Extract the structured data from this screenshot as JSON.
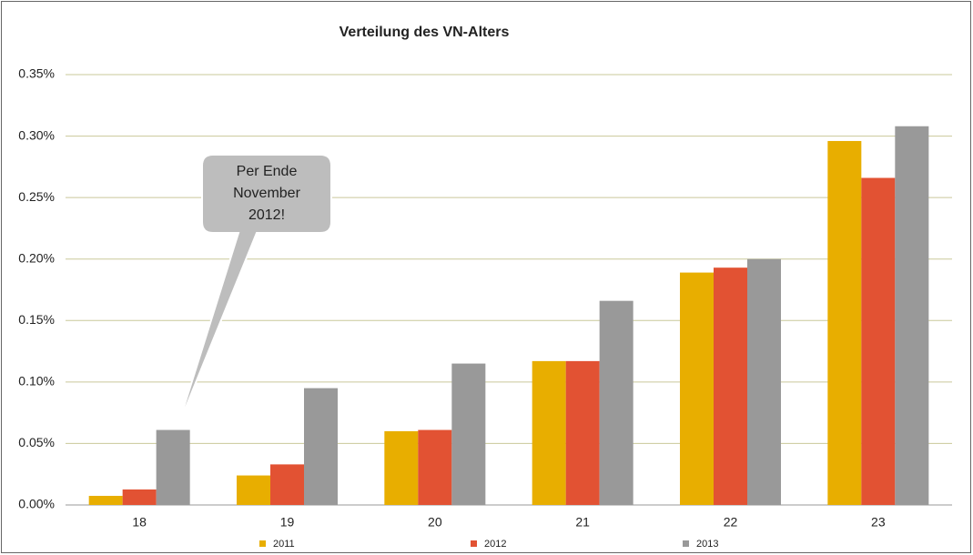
{
  "chart_data": {
    "type": "bar",
    "title": "Verteilung des VN-Alters",
    "categories": [
      "18",
      "19",
      "20",
      "21",
      "22",
      "23"
    ],
    "series": [
      {
        "name": "2011",
        "color": "#e8ae00",
        "values": [
          0.0074,
          0.024,
          0.06,
          0.117,
          0.189,
          0.296
        ]
      },
      {
        "name": "2012",
        "color": "#e25233",
        "values": [
          0.0126,
          0.033,
          0.061,
          0.117,
          0.193,
          0.266
        ]
      },
      {
        "name": "2013",
        "color": "#999999",
        "values": [
          0.061,
          0.095,
          0.115,
          0.166,
          0.2,
          0.308
        ]
      }
    ],
    "ylim": [
      0,
      0.35
    ],
    "yticks": [
      {
        "value": 0,
        "label": "0.00%"
      },
      {
        "value": 0.05,
        "label": "0.05%"
      },
      {
        "value": 0.1,
        "label": "0.10%"
      },
      {
        "value": 0.15,
        "label": "0.15%"
      },
      {
        "value": 0.2,
        "label": "0.20%"
      },
      {
        "value": 0.25,
        "label": "0.25%"
      },
      {
        "value": 0.3,
        "label": "0.30%"
      },
      {
        "value": 0.35,
        "label": "0.35%"
      }
    ],
    "grid": true,
    "annotation": [
      "Per Ende",
      "November",
      "2012!"
    ]
  }
}
